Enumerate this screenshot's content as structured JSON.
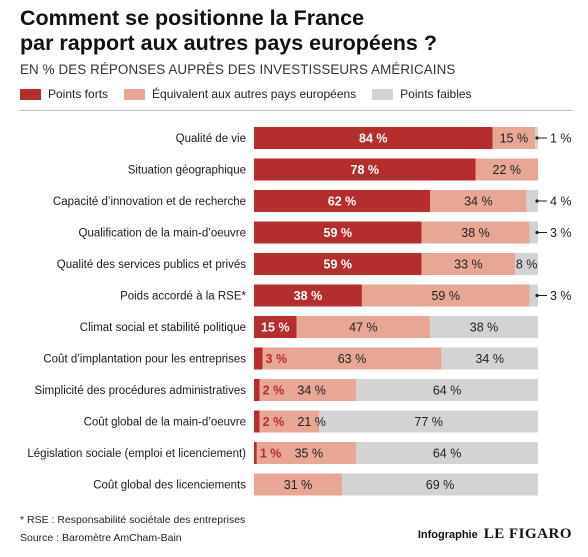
{
  "title": "Comment se positionne la France\npar rapport aux autres pays européens ?",
  "subtitle": "EN % DES RÉPONSES AUPRÈS DES INVESTISSEURS AMÉRICAINS",
  "legend": [
    {
      "label": "Points forts",
      "color": "#b52d2d"
    },
    {
      "label": "Équivalent aux autres pays européens",
      "color": "#e8a795"
    },
    {
      "label": "Points faibles",
      "color": "#d3d3d3"
    }
  ],
  "chart_data": {
    "type": "bar",
    "orientation": "horizontal",
    "stacked": true,
    "categories": [
      "Qualité de vie",
      "Situation géographique",
      "Capacité d’innovation et de recherche",
      "Qualification de la main-d’oeuvre",
      "Qualité des services publics et privés",
      "Poids accordé à la RSE*",
      "Climat social et stabilité politique",
      "Coût d’implantation pour les entreprises",
      "Simplicité des procédures administratives",
      "Coût global de la main-d’oeuvre",
      "Législation sociale (emploi et licenciement)",
      "Coût global des licenciements"
    ],
    "series": [
      {
        "name": "Points forts",
        "color": "#b52d2d",
        "values": [
          84,
          78,
          62,
          59,
          59,
          38,
          15,
          3,
          2,
          2,
          1,
          0
        ]
      },
      {
        "name": "Équivalent aux autres pays européens",
        "color": "#e8a795",
        "values": [
          15,
          22,
          34,
          38,
          33,
          59,
          47,
          63,
          34,
          21,
          35,
          31
        ]
      },
      {
        "name": "Points faibles",
        "color": "#d3d3d3",
        "values": [
          1,
          0,
          4,
          3,
          8,
          3,
          38,
          34,
          64,
          77,
          64,
          69
        ]
      }
    ],
    "value_labels": [
      [
        "84 %",
        "15 %",
        "1 %"
      ],
      [
        "78 %",
        "22 %",
        ""
      ],
      [
        "62 %",
        "34 %",
        "4 %"
      ],
      [
        "59 %",
        "38 %",
        "3 %"
      ],
      [
        "59 %",
        "33 %",
        "8 %"
      ],
      [
        "38 %",
        "59 %",
        "3 %"
      ],
      [
        "15 %",
        "47 %",
        "38 %"
      ],
      [
        "3 %",
        "63 %",
        "34 %"
      ],
      [
        "2 %",
        "34 %",
        "64 %"
      ],
      [
        "2 %",
        "21 %",
        "77 %"
      ],
      [
        "1 %",
        "35 %",
        "64 %"
      ],
      [
        "",
        "31 %",
        "69 %"
      ]
    ],
    "xlim": [
      0,
      100
    ],
    "legend_position": "top-left",
    "grid": false
  },
  "footnotes": [
    "* RSE : Responsabilité sociétale des entreprises",
    "Source : Baromètre AmCham-Bain"
  ],
  "credit": {
    "label": "Infographie",
    "logo": "LE FIGARO"
  }
}
